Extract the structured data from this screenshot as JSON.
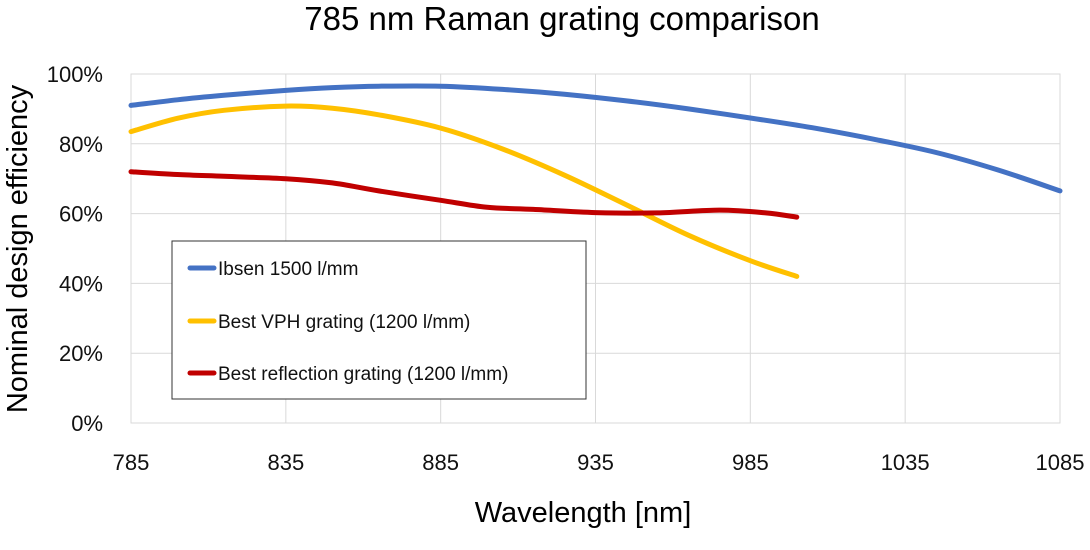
{
  "chart_data": {
    "type": "line",
    "title": "785 nm Raman grating comparison",
    "xlabel": "Wavelength [nm]",
    "ylabel": "Nominal design efficiency",
    "xlim": [
      785,
      1085
    ],
    "ylim": [
      0,
      100
    ],
    "x_ticks": [
      "785",
      "835",
      "885",
      "935",
      "985",
      "1035",
      "1085"
    ],
    "y_ticks": [
      "0%",
      "20%",
      "40%",
      "60%",
      "80%",
      "100%"
    ],
    "grid": true,
    "legend_position": "bottom-left",
    "series": [
      {
        "name": "Ibsen 1500 l/mm",
        "color": "#4472C4",
        "x": [
          785,
          800,
          815,
          835,
          850,
          865,
          885,
          905,
          925,
          945,
          965,
          985,
          1005,
          1025,
          1045,
          1065,
          1085
        ],
        "y": [
          91,
          92.6,
          93.9,
          95.3,
          96.1,
          96.5,
          96.5,
          95.6,
          94.2,
          92.3,
          90,
          87.4,
          84.6,
          81.3,
          77.5,
          72.5,
          66.5
        ]
      },
      {
        "name": "Best VPH grating (1200 l/mm)",
        "color": "#FFC000",
        "x": [
          785,
          800,
          815,
          835,
          850,
          865,
          885,
          905,
          925,
          945,
          965,
          985,
          1000
        ],
        "y": [
          83.5,
          87.3,
          89.6,
          90.8,
          90.2,
          88.3,
          84.5,
          78.5,
          71,
          62.5,
          53.8,
          46.5,
          42
        ]
      },
      {
        "name": "Best reflection grating (1200 l/mm)",
        "color": "#C00000",
        "x": [
          785,
          800,
          815,
          835,
          850,
          865,
          885,
          900,
          915,
          935,
          955,
          975,
          990,
          1000
        ],
        "y": [
          72,
          71.2,
          70.7,
          70,
          68.8,
          66.5,
          63.8,
          61.8,
          61.2,
          60.3,
          60.2,
          61,
          60.2,
          59
        ]
      }
    ]
  }
}
